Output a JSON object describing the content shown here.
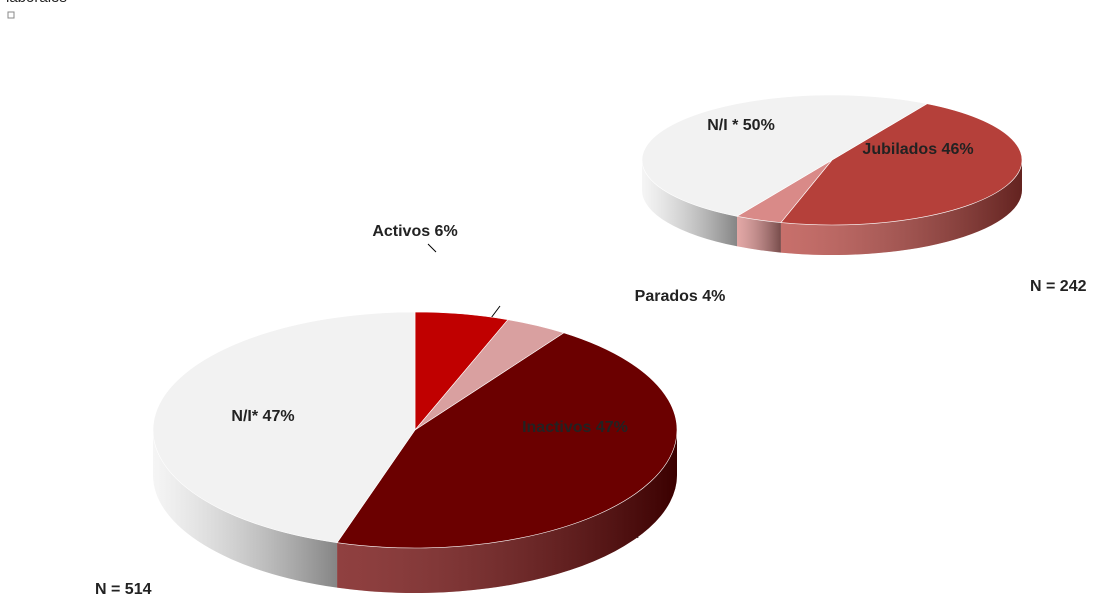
{
  "chart_data": [
    {
      "type": "pie",
      "title": "laborales",
      "categories": [
        "Activos",
        "Parados",
        "Inactivos",
        "N/I*"
      ],
      "values": [
        6,
        4,
        47,
        47
      ],
      "value_labels": [
        "Activos 6%",
        "Parados 4%",
        "Inactivos 47%",
        "N/I* 47%"
      ],
      "colors": [
        "#c00000",
        "#d9a0a0",
        "#6b0000",
        "#f2f2f2"
      ],
      "annotation": "N = 514"
    },
    {
      "type": "pie",
      "categories": [
        "Jubilados",
        null,
        "N/I *"
      ],
      "values": [
        46,
        4,
        50
      ],
      "value_labels": [
        "Jubilados 46%",
        null,
        "N/I * 50%"
      ],
      "colors": [
        "#b5403a",
        "#d98a88",
        "#f2f2f2"
      ],
      "annotation": "N = 242"
    }
  ]
}
